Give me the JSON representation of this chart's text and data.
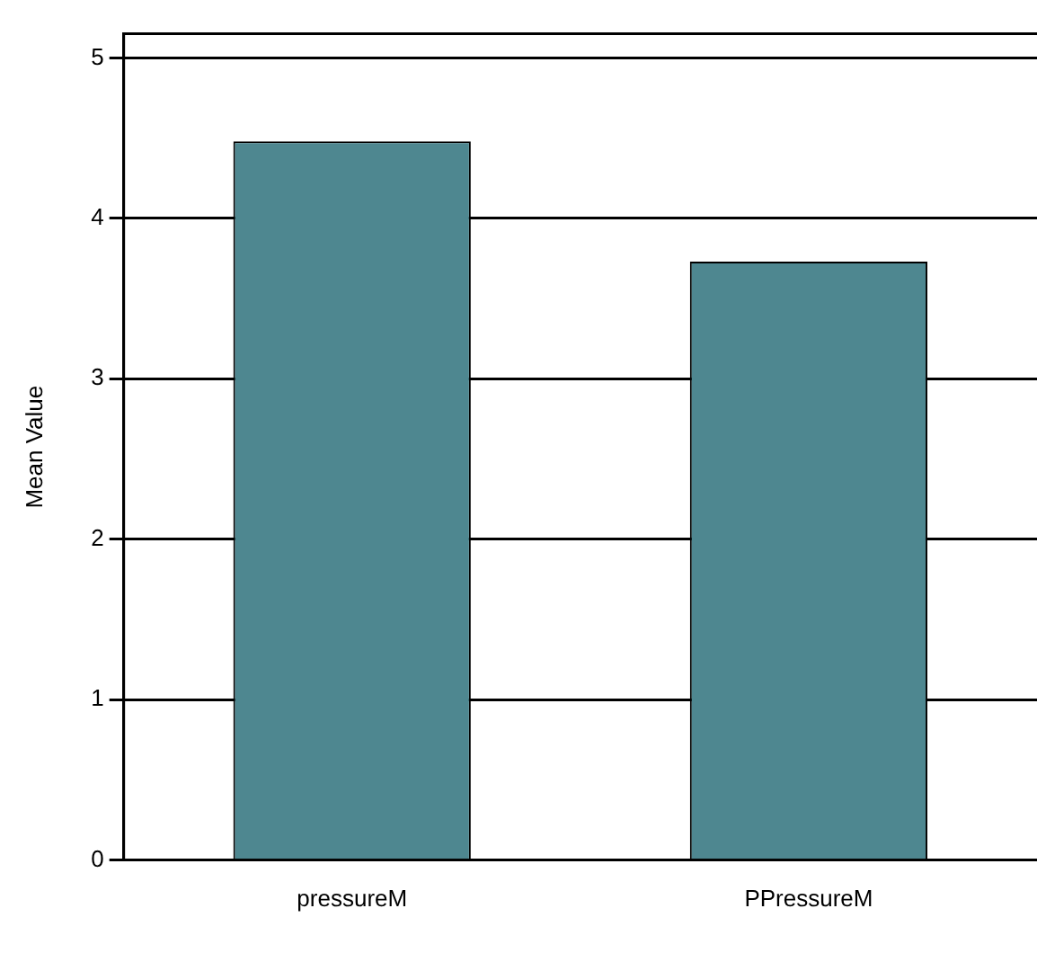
{
  "chart_data": {
    "type": "bar",
    "ylabel": "Mean Value",
    "categories": [
      "pressureM",
      "PPressureM"
    ],
    "values": [
      4.48,
      3.73
    ],
    "color": "#4e8790",
    "ylim": [
      0,
      5.15
    ],
    "yticks": [
      0,
      1,
      2,
      3,
      4,
      5
    ],
    "grid": "y"
  }
}
